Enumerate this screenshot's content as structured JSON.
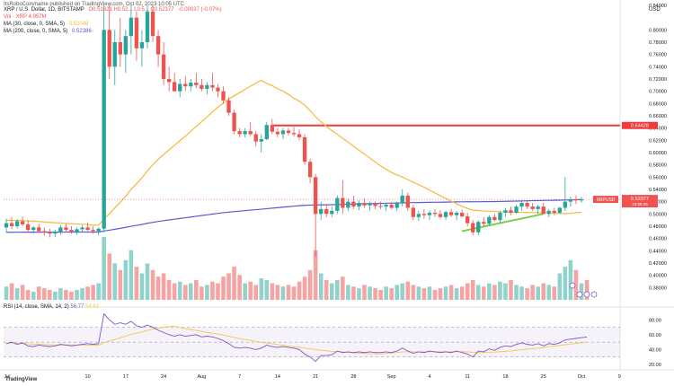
{
  "header": {
    "top_line": "ItsRoboCoin/name published on TradingView.com, Oct 02, 2023 10:05 UTC",
    "symbol": "XRP / U.S. Dollar, 1D, BITSTAMP",
    "ohlc": "O0.51621  H0.52...  L0.5...  C0.52377",
    "change": "-0.00037 (-0.07%)",
    "vol": "Vol · XRP  4.957M",
    "ma30": "MA (30, close, 0, SMA, 5)",
    "ma30_val": "0.52048",
    "ma200": "MA (200, close, 0, SMA, 5)",
    "ma200_val": "0.52386",
    "currency": "USD"
  },
  "rsi_header": {
    "label": "RSI (14, close, SMA, 14, 2)",
    "value": "56.77",
    "value2": "54.61"
  },
  "colors": {
    "up": "#26a69a",
    "down": "#ef5350",
    "ma30": "#f5b93b",
    "ma200": "#5b5bd6",
    "resistance": "#ef3b3b",
    "support": "#7bcf4a",
    "rsi": "#7e57c2",
    "rsi_ma": "#f5c84a"
  },
  "footer": {
    "brand": "TradingView"
  },
  "chart_data": {
    "type": "candlestick",
    "price_axis": {
      "ticks": [
        "0.84000",
        "0.80000",
        "0.78000",
        "0.76000",
        "0.74000",
        "0.72000",
        "0.70000",
        "0.68000",
        "0.66000",
        "0.64000",
        "0.62000",
        "0.60000",
        "0.58000",
        "0.56000",
        "0.54000",
        "0.52000",
        "0.50000",
        "0.48000",
        "0.46000",
        "0.44000",
        "0.42000",
        "0.40000",
        "0.38000"
      ],
      "range": [
        0.36,
        0.84
      ]
    },
    "time_axis": {
      "ticks": [
        "Jul",
        "10",
        "17",
        "24",
        "Aug",
        "7",
        "14",
        "21",
        "28",
        "Sep",
        "4",
        "11",
        "18",
        "25",
        "Oct",
        "9"
      ]
    },
    "last_price": "0.52377",
    "last_time": "13:58:35",
    "resistance_price": "0.64428",
    "symbol_label": "XRPUSD",
    "candles_ohlc": [
      [
        0.478,
        0.492,
        0.47,
        0.485
      ],
      [
        0.485,
        0.495,
        0.475,
        0.48
      ],
      [
        0.48,
        0.492,
        0.476,
        0.488
      ],
      [
        0.488,
        0.496,
        0.48,
        0.483
      ],
      [
        0.483,
        0.49,
        0.47,
        0.474
      ],
      [
        0.474,
        0.48,
        0.468,
        0.478
      ],
      [
        0.478,
        0.484,
        0.47,
        0.472
      ],
      [
        0.472,
        0.478,
        0.465,
        0.47
      ],
      [
        0.47,
        0.476,
        0.462,
        0.468
      ],
      [
        0.468,
        0.474,
        0.462,
        0.471
      ],
      [
        0.471,
        0.482,
        0.466,
        0.478
      ],
      [
        0.478,
        0.484,
        0.47,
        0.474
      ],
      [
        0.474,
        0.48,
        0.468,
        0.471
      ],
      [
        0.471,
        0.478,
        0.466,
        0.475
      ],
      [
        0.475,
        0.482,
        0.47,
        0.478
      ],
      [
        0.478,
        0.486,
        0.472,
        0.474
      ],
      [
        0.474,
        0.48,
        0.468,
        0.472
      ],
      [
        0.472,
        0.478,
        0.465,
        0.476
      ],
      [
        0.476,
        0.84,
        0.47,
        0.8
      ],
      [
        0.8,
        0.84,
        0.72,
        0.74
      ],
      [
        0.74,
        0.8,
        0.71,
        0.78
      ],
      [
        0.78,
        0.82,
        0.74,
        0.76
      ],
      [
        0.76,
        0.8,
        0.73,
        0.79
      ],
      [
        0.79,
        0.84,
        0.76,
        0.82
      ],
      [
        0.82,
        0.83,
        0.75,
        0.77
      ],
      [
        0.77,
        0.8,
        0.74,
        0.78
      ],
      [
        0.78,
        0.84,
        0.77,
        0.83
      ],
      [
        0.83,
        0.84,
        0.78,
        0.79
      ],
      [
        0.79,
        0.8,
        0.74,
        0.76
      ],
      [
        0.76,
        0.78,
        0.71,
        0.72
      ],
      [
        0.72,
        0.74,
        0.7,
        0.715
      ],
      [
        0.715,
        0.73,
        0.7,
        0.7
      ],
      [
        0.7,
        0.72,
        0.69,
        0.712
      ],
      [
        0.712,
        0.725,
        0.7,
        0.708
      ],
      [
        0.708,
        0.72,
        0.7,
        0.714
      ],
      [
        0.714,
        0.73,
        0.705,
        0.71
      ],
      [
        0.71,
        0.72,
        0.7,
        0.704
      ],
      [
        0.704,
        0.715,
        0.695,
        0.71
      ],
      [
        0.71,
        0.73,
        0.7,
        0.706
      ],
      [
        0.706,
        0.712,
        0.69,
        0.7
      ],
      [
        0.7,
        0.708,
        0.68,
        0.685
      ],
      [
        0.685,
        0.69,
        0.66,
        0.665
      ],
      [
        0.665,
        0.67,
        0.63,
        0.635
      ],
      [
        0.635,
        0.64,
        0.625,
        0.63
      ],
      [
        0.63,
        0.64,
        0.625,
        0.635
      ],
      [
        0.635,
        0.65,
        0.628,
        0.63
      ],
      [
        0.63,
        0.635,
        0.61,
        0.618
      ],
      [
        0.618,
        0.63,
        0.6,
        0.622
      ],
      [
        0.622,
        0.65,
        0.62,
        0.645
      ],
      [
        0.645,
        0.655,
        0.63,
        0.634
      ],
      [
        0.634,
        0.64,
        0.625,
        0.63
      ],
      [
        0.63,
        0.64,
        0.622,
        0.636
      ],
      [
        0.636,
        0.64,
        0.628,
        0.632
      ],
      [
        0.632,
        0.642,
        0.626,
        0.63
      ],
      [
        0.63,
        0.638,
        0.62,
        0.625
      ],
      [
        0.625,
        0.63,
        0.58,
        0.585
      ],
      [
        0.585,
        0.59,
        0.55,
        0.56
      ],
      [
        0.56,
        0.565,
        0.43,
        0.5
      ],
      [
        0.5,
        0.52,
        0.49,
        0.508
      ],
      [
        0.508,
        0.515,
        0.495,
        0.5
      ],
      [
        0.5,
        0.512,
        0.495,
        0.505
      ],
      [
        0.505,
        0.53,
        0.5,
        0.526
      ],
      [
        0.526,
        0.555,
        0.5,
        0.51
      ],
      [
        0.51,
        0.525,
        0.505,
        0.52
      ],
      [
        0.52,
        0.53,
        0.508,
        0.512
      ],
      [
        0.512,
        0.522,
        0.506,
        0.518
      ],
      [
        0.518,
        0.525,
        0.51,
        0.514
      ],
      [
        0.514,
        0.52,
        0.505,
        0.516
      ],
      [
        0.516,
        0.52,
        0.508,
        0.513
      ],
      [
        0.513,
        0.52,
        0.508,
        0.512
      ],
      [
        0.512,
        0.518,
        0.505,
        0.515
      ],
      [
        0.515,
        0.52,
        0.508,
        0.51
      ],
      [
        0.51,
        0.52,
        0.505,
        0.517
      ],
      [
        0.517,
        0.54,
        0.512,
        0.53
      ],
      [
        0.53,
        0.535,
        0.505,
        0.51
      ],
      [
        0.51,
        0.515,
        0.49,
        0.495
      ],
      [
        0.495,
        0.505,
        0.488,
        0.5
      ],
      [
        0.5,
        0.508,
        0.492,
        0.498
      ],
      [
        0.498,
        0.505,
        0.49,
        0.502
      ],
      [
        0.502,
        0.508,
        0.495,
        0.5
      ],
      [
        0.5,
        0.506,
        0.492,
        0.495
      ],
      [
        0.495,
        0.505,
        0.49,
        0.503
      ],
      [
        0.503,
        0.508,
        0.495,
        0.498
      ],
      [
        0.498,
        0.505,
        0.49,
        0.502
      ],
      [
        0.502,
        0.507,
        0.494,
        0.496
      ],
      [
        0.496,
        0.502,
        0.48,
        0.485
      ],
      [
        0.485,
        0.49,
        0.465,
        0.47
      ],
      [
        0.47,
        0.49,
        0.465,
        0.487
      ],
      [
        0.487,
        0.495,
        0.48,
        0.484
      ],
      [
        0.484,
        0.498,
        0.48,
        0.495
      ],
      [
        0.495,
        0.5,
        0.488,
        0.49
      ],
      [
        0.49,
        0.505,
        0.485,
        0.502
      ],
      [
        0.502,
        0.51,
        0.495,
        0.506
      ],
      [
        0.506,
        0.512,
        0.498,
        0.502
      ],
      [
        0.502,
        0.515,
        0.5,
        0.512
      ],
      [
        0.512,
        0.52,
        0.505,
        0.518
      ],
      [
        0.518,
        0.522,
        0.508,
        0.512
      ],
      [
        0.512,
        0.518,
        0.505,
        0.508
      ],
      [
        0.508,
        0.515,
        0.5,
        0.512
      ],
      [
        0.512,
        0.518,
        0.505,
        0.5
      ],
      [
        0.5,
        0.508,
        0.495,
        0.505
      ],
      [
        0.505,
        0.51,
        0.498,
        0.502
      ],
      [
        0.502,
        0.512,
        0.5,
        0.51
      ],
      [
        0.51,
        0.56,
        0.505,
        0.52
      ],
      [
        0.52,
        0.528,
        0.512,
        0.524
      ],
      [
        0.524,
        0.53,
        0.516,
        0.522
      ],
      [
        0.522,
        0.528,
        0.518,
        0.5238
      ]
    ],
    "volume": [
      8,
      10,
      7,
      9,
      6,
      5,
      8,
      7,
      6,
      5,
      7,
      6,
      5,
      6,
      7,
      8,
      9,
      10,
      38,
      28,
      22,
      18,
      24,
      30,
      20,
      16,
      22,
      18,
      14,
      16,
      12,
      10,
      11,
      9,
      10,
      12,
      8,
      9,
      11,
      10,
      14,
      16,
      20,
      15,
      10,
      11,
      9,
      13,
      12,
      10,
      9,
      8,
      9,
      8,
      11,
      14,
      18,
      30,
      16,
      12,
      10,
      12,
      14,
      9,
      8,
      7,
      9,
      8,
      7,
      6,
      8,
      7,
      9,
      10,
      11,
      9,
      8,
      7,
      8,
      6,
      7,
      8,
      9,
      7,
      8,
      10,
      12,
      9,
      8,
      10,
      9,
      11,
      10,
      12,
      9,
      8,
      7,
      9,
      8,
      10,
      9,
      8,
      16,
      20,
      24,
      18,
      10,
      12
    ],
    "rsi": [
      48,
      50,
      47,
      49,
      45,
      44,
      46,
      45,
      44,
      45,
      47,
      46,
      45,
      46,
      47,
      48,
      47,
      48,
      88,
      80,
      74,
      76,
      74,
      78,
      72,
      70,
      73,
      70,
      66,
      63,
      60,
      58,
      60,
      58,
      59,
      60,
      57,
      58,
      57,
      55,
      52,
      48,
      43,
      42,
      43,
      42,
      40,
      42,
      46,
      44,
      43,
      44,
      43,
      42,
      40,
      34,
      30,
      24,
      32,
      32,
      33,
      38,
      36,
      37,
      36,
      37,
      36,
      37,
      36,
      36,
      37,
      36,
      38,
      42,
      38,
      35,
      37,
      36,
      38,
      37,
      36,
      37,
      36,
      38,
      36,
      34,
      30,
      38,
      37,
      41,
      39,
      43,
      45,
      44,
      47,
      49,
      47,
      46,
      48,
      45,
      48,
      47,
      49,
      53,
      54,
      55,
      56,
      56.8
    ]
  }
}
